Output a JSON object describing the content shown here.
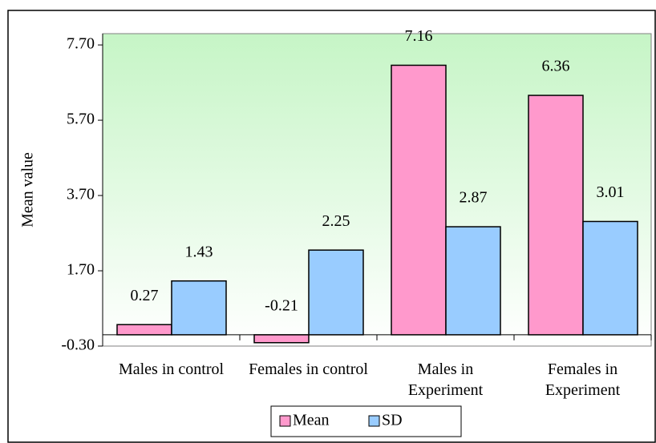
{
  "chart_data": {
    "type": "bar",
    "y_label": "Mean value",
    "categories": [
      "Males in control",
      "Females in control",
      "Males in Experiment",
      "Females in Experiment"
    ],
    "series": [
      {
        "name": "Mean",
        "color": "#ff99cc",
        "values": [
          0.27,
          -0.21,
          7.16,
          6.36
        ]
      },
      {
        "name": "SD",
        "color": "#99ccff",
        "values": [
          1.43,
          2.25,
          2.87,
          3.01
        ]
      }
    ],
    "ylim": [
      -0.3,
      8.0
    ],
    "yticks": [
      {
        "value": -0.3,
        "label": "-0.30"
      },
      {
        "value": 1.7,
        "label": "1.70"
      },
      {
        "value": 3.7,
        "label": "3.70"
      },
      {
        "value": 5.7,
        "label": "5.70"
      },
      {
        "value": 7.7,
        "label": "7.70"
      }
    ],
    "legend": "bottom"
  }
}
